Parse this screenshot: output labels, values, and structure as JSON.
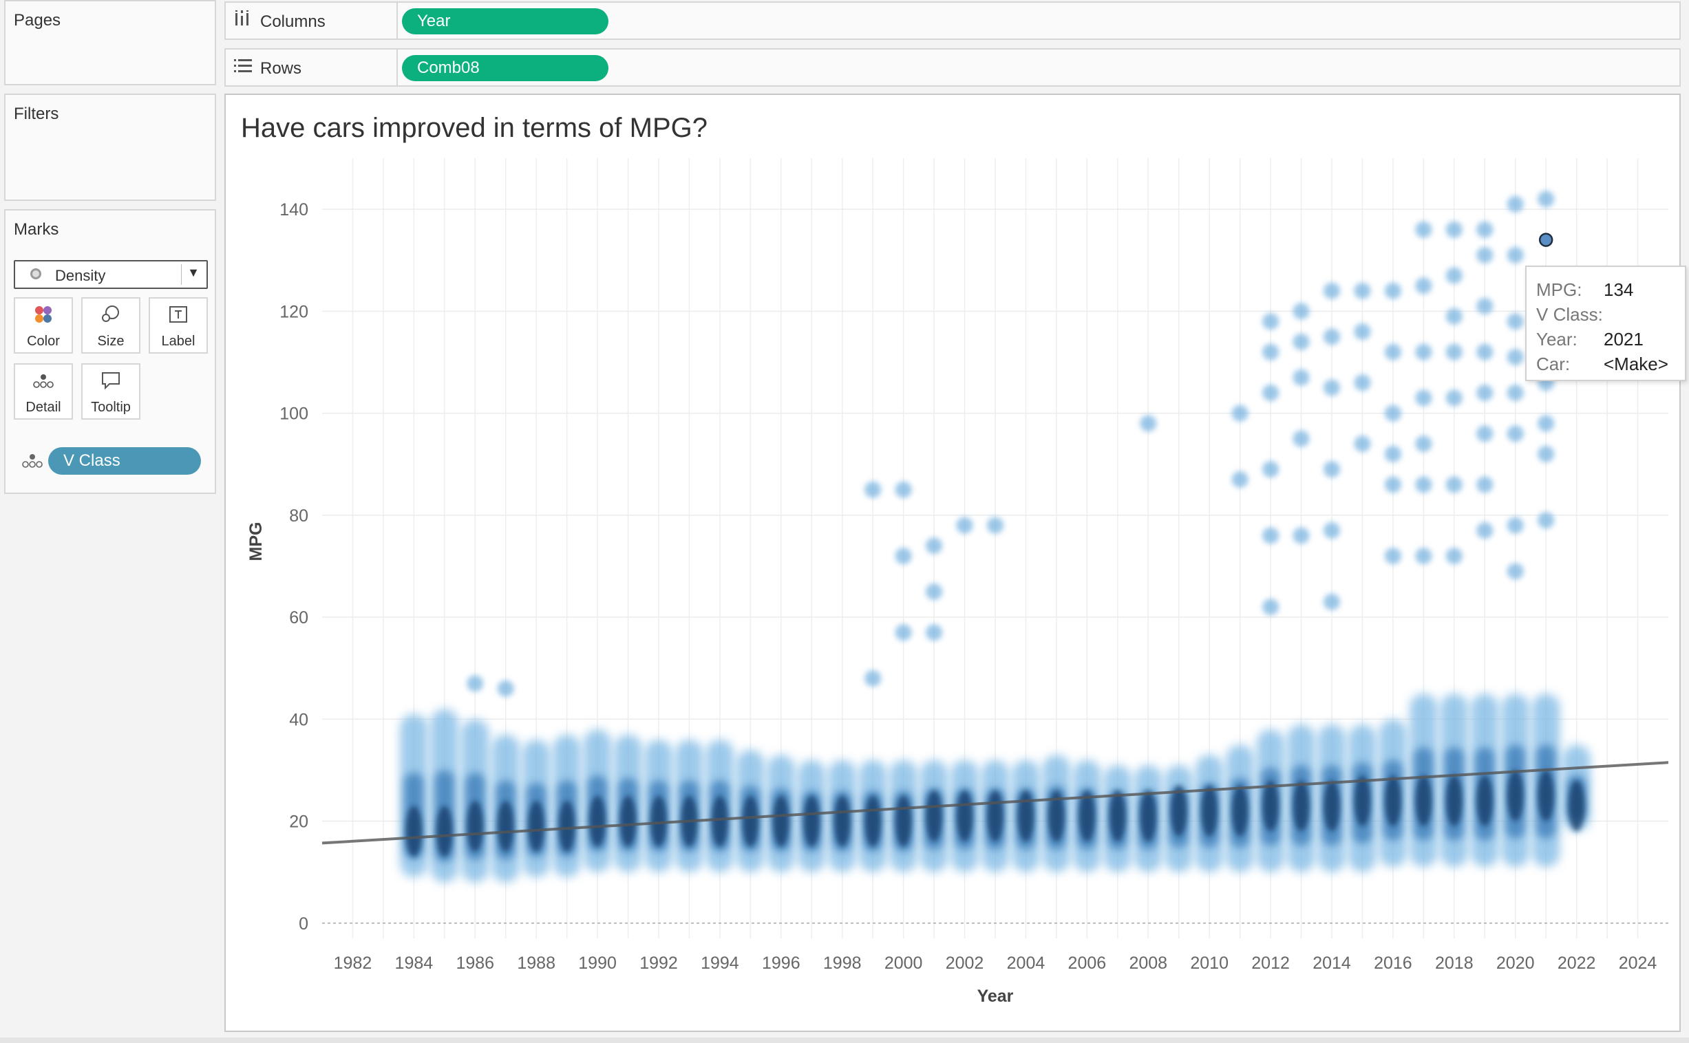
{
  "pages_title": "Pages",
  "filters_title": "Filters",
  "marks": {
    "title": "Marks",
    "type": "Density",
    "cards": [
      "Color",
      "Size",
      "Label",
      "Detail",
      "Tooltip"
    ],
    "detail_pill": "V Class"
  },
  "shelves": {
    "columns_label": "Columns",
    "columns_pill": "Year",
    "rows_label": "Rows",
    "rows_pill": "Comb08"
  },
  "viz": {
    "title": "Have cars improved in terms of MPG?"
  },
  "tooltip": {
    "mpg_key": "MPG:",
    "mpg_val": "134",
    "vclass_key": "V Class:",
    "vclass_val": "",
    "year_key": "Year:",
    "year_val": "2021",
    "car_key": "Car:",
    "car_val": "<Make>"
  },
  "colors": {
    "accent_green": "#0bb07e",
    "pill_blue": "#4a98b5",
    "density_blue": "#1f5f9c"
  },
  "chart_data": {
    "type": "scatter",
    "title": "Have cars improved in terms of MPG?",
    "xlabel": "Year",
    "ylabel": "MPG",
    "xlim": [
      1981,
      2025
    ],
    "ylim": [
      -3,
      150
    ],
    "xticks": [
      1982,
      1984,
      1986,
      1988,
      1990,
      1992,
      1994,
      1996,
      1998,
      2000,
      2002,
      2004,
      2006,
      2008,
      2010,
      2012,
      2014,
      2016,
      2018,
      2020,
      2022,
      2024
    ],
    "yticks": [
      0,
      20,
      40,
      60,
      80,
      100,
      120,
      140
    ],
    "grid": true,
    "years": [
      1984,
      1985,
      1986,
      1987,
      1988,
      1989,
      1990,
      1991,
      1992,
      1993,
      1994,
      1995,
      1996,
      1997,
      1998,
      1999,
      2000,
      2001,
      2002,
      2003,
      2004,
      2005,
      2006,
      2007,
      2008,
      2009,
      2010,
      2011,
      2012,
      2013,
      2014,
      2015,
      2016,
      2017,
      2018,
      2019,
      2020,
      2021,
      2022
    ],
    "density_top": [
      41,
      42,
      40,
      37,
      36,
      37,
      38,
      37,
      36,
      36,
      36,
      34,
      33,
      32,
      32,
      32,
      32,
      32,
      32,
      32,
      32,
      33,
      32,
      31,
      31,
      31,
      33,
      35,
      38,
      39,
      39,
      39,
      40,
      45,
      45,
      45,
      45,
      45,
      35
    ],
    "density_bottom": [
      9,
      8,
      8,
      8,
      9,
      9,
      10,
      10,
      10,
      10,
      10,
      10,
      10,
      10,
      10,
      10,
      10,
      10,
      10,
      10,
      10,
      10,
      10,
      10,
      10,
      10,
      10,
      10,
      10,
      10,
      10,
      10,
      11,
      11,
      11,
      11,
      11,
      11,
      18
    ],
    "density_center": [
      18,
      18,
      19,
      19,
      19,
      19,
      20,
      20,
      20,
      20,
      20,
      20,
      20,
      20,
      20,
      20,
      20,
      21,
      21,
      21,
      21,
      21,
      21,
      21,
      21,
      22,
      22,
      22,
      23,
      23,
      23,
      24,
      24,
      24,
      24,
      24,
      25,
      25,
      23
    ],
    "outliers": [
      {
        "x": 1986,
        "y": 47
      },
      {
        "x": 1987,
        "y": 46
      },
      {
        "x": 1999,
        "y": 85
      },
      {
        "x": 2000,
        "y": 85
      },
      {
        "x": 1999,
        "y": 48
      },
      {
        "x": 2000,
        "y": 72
      },
      {
        "x": 2001,
        "y": 74
      },
      {
        "x": 2001,
        "y": 65
      },
      {
        "x": 2002,
        "y": 78
      },
      {
        "x": 2003,
        "y": 78
      },
      {
        "x": 2000,
        "y": 57
      },
      {
        "x": 2001,
        "y": 57
      },
      {
        "x": 2008,
        "y": 98
      },
      {
        "x": 2011,
        "y": 87
      },
      {
        "x": 2011,
        "y": 100
      },
      {
        "x": 2012,
        "y": 62
      },
      {
        "x": 2012,
        "y": 76
      },
      {
        "x": 2012,
        "y": 89
      },
      {
        "x": 2012,
        "y": 104
      },
      {
        "x": 2012,
        "y": 112
      },
      {
        "x": 2012,
        "y": 118
      },
      {
        "x": 2013,
        "y": 76
      },
      {
        "x": 2013,
        "y": 95
      },
      {
        "x": 2013,
        "y": 107
      },
      {
        "x": 2013,
        "y": 114
      },
      {
        "x": 2013,
        "y": 120
      },
      {
        "x": 2014,
        "y": 63
      },
      {
        "x": 2014,
        "y": 77
      },
      {
        "x": 2014,
        "y": 89
      },
      {
        "x": 2014,
        "y": 105
      },
      {
        "x": 2014,
        "y": 115
      },
      {
        "x": 2014,
        "y": 124
      },
      {
        "x": 2015,
        "y": 94
      },
      {
        "x": 2015,
        "y": 106
      },
      {
        "x": 2015,
        "y": 116
      },
      {
        "x": 2015,
        "y": 124
      },
      {
        "x": 2016,
        "y": 72
      },
      {
        "x": 2016,
        "y": 86
      },
      {
        "x": 2016,
        "y": 92
      },
      {
        "x": 2016,
        "y": 100
      },
      {
        "x": 2016,
        "y": 112
      },
      {
        "x": 2016,
        "y": 124
      },
      {
        "x": 2017,
        "y": 72
      },
      {
        "x": 2017,
        "y": 86
      },
      {
        "x": 2017,
        "y": 94
      },
      {
        "x": 2017,
        "y": 103
      },
      {
        "x": 2017,
        "y": 112
      },
      {
        "x": 2017,
        "y": 125
      },
      {
        "x": 2017,
        "y": 136
      },
      {
        "x": 2018,
        "y": 72
      },
      {
        "x": 2018,
        "y": 86
      },
      {
        "x": 2018,
        "y": 103
      },
      {
        "x": 2018,
        "y": 112
      },
      {
        "x": 2018,
        "y": 119
      },
      {
        "x": 2018,
        "y": 127
      },
      {
        "x": 2018,
        "y": 136
      },
      {
        "x": 2019,
        "y": 77
      },
      {
        "x": 2019,
        "y": 86
      },
      {
        "x": 2019,
        "y": 96
      },
      {
        "x": 2019,
        "y": 104
      },
      {
        "x": 2019,
        "y": 112
      },
      {
        "x": 2019,
        "y": 121
      },
      {
        "x": 2019,
        "y": 131
      },
      {
        "x": 2019,
        "y": 136
      },
      {
        "x": 2020,
        "y": 69
      },
      {
        "x": 2020,
        "y": 78
      },
      {
        "x": 2020,
        "y": 96
      },
      {
        "x": 2020,
        "y": 104
      },
      {
        "x": 2020,
        "y": 111
      },
      {
        "x": 2020,
        "y": 118
      },
      {
        "x": 2020,
        "y": 131
      },
      {
        "x": 2020,
        "y": 141
      },
      {
        "x": 2021,
        "y": 79
      },
      {
        "x": 2021,
        "y": 92
      },
      {
        "x": 2021,
        "y": 98
      },
      {
        "x": 2021,
        "y": 106
      },
      {
        "x": 2021,
        "y": 114
      },
      {
        "x": 2021,
        "y": 142
      }
    ],
    "highlight": {
      "x": 2021,
      "y": 134
    },
    "trend_line": {
      "x0": 1981,
      "y0": 15.7,
      "x1": 2025,
      "y1": 31.5
    }
  }
}
